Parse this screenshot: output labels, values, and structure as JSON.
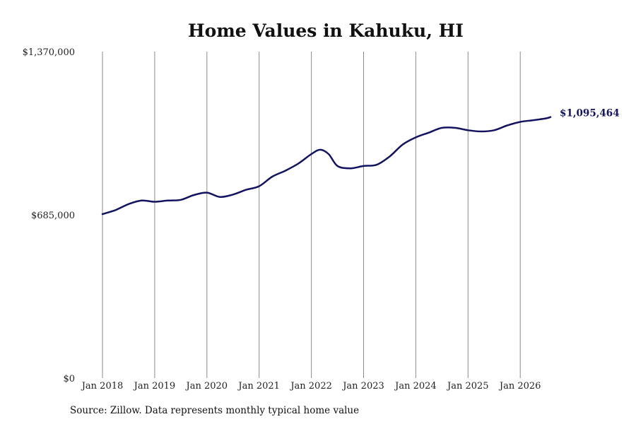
{
  "chart_data": {
    "type": "line",
    "title": "Home Values in Kahuku, HI",
    "xlabel": "",
    "ylabel": "",
    "ylim": [
      0,
      1370000
    ],
    "y_ticks": [
      0,
      685000,
      1370000
    ],
    "y_tick_labels": [
      "$0",
      "$685,000",
      "$1,370,000"
    ],
    "x_ticks": [
      2018,
      2019,
      2020,
      2021,
      2022,
      2023,
      2024,
      2025,
      2026
    ],
    "x_tick_labels": [
      "Jan 2018",
      "Jan 2019",
      "Jan 2020",
      "Jan 2021",
      "Jan 2022",
      "Jan 2023",
      "Jan 2024",
      "Jan 2025",
      "Jan 2026"
    ],
    "grid": "vertical",
    "series": [
      {
        "color": "#13135f",
        "end_label": "$1,095,464",
        "x": [
          2018.0,
          2018.25,
          2018.5,
          2018.75,
          2019.0,
          2019.25,
          2019.5,
          2019.75,
          2020.0,
          2020.25,
          2020.5,
          2020.75,
          2021.0,
          2021.25,
          2021.5,
          2021.75,
          2022.0,
          2022.17,
          2022.33,
          2022.5,
          2022.75,
          2023.0,
          2023.25,
          2023.5,
          2023.75,
          2024.0,
          2024.25,
          2024.5,
          2024.75,
          2025.0,
          2025.25,
          2025.5,
          2025.75,
          2026.0,
          2026.25,
          2026.5,
          2026.58
        ],
        "values": [
          688000,
          705000,
          730000,
          745000,
          740000,
          745000,
          748000,
          768000,
          778000,
          760000,
          770000,
          790000,
          805000,
          845000,
          870000,
          900000,
          940000,
          958000,
          940000,
          890000,
          880000,
          890000,
          895000,
          930000,
          980000,
          1010000,
          1030000,
          1050000,
          1050000,
          1040000,
          1035000,
          1040000,
          1060000,
          1075000,
          1082000,
          1090000,
          1095464
        ]
      }
    ]
  },
  "source_text": "Source: Zillow. Data represents monthly typical home value"
}
